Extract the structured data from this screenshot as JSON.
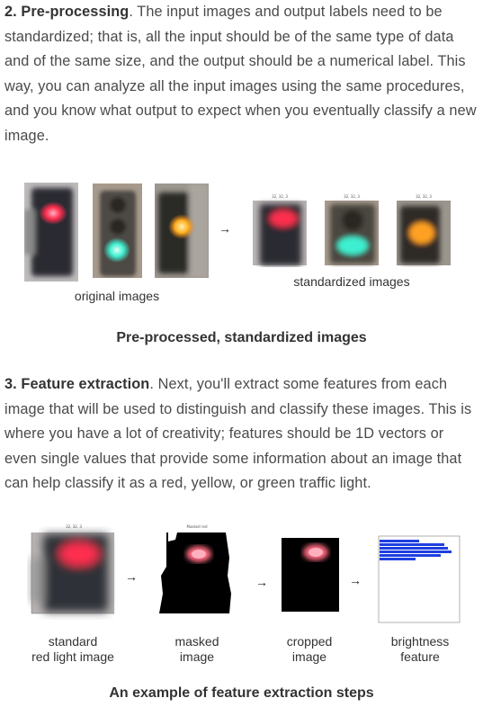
{
  "section2": {
    "title": "2. Pre-processing",
    "body": ". The input images and output labels need to be standardized; that is, all the input should be of the same type of data and of the same size, and the output should be a numerical label. This way, you can analyze all the input images using the same procedures, and you know what output to expect when you eventually classify a new image."
  },
  "figure1": {
    "label_original": "original images",
    "label_standardized": "standardized images",
    "std_titles": [
      "32, 32, 3",
      "32, 32, 3",
      "32, 32, 3"
    ],
    "caption": "Pre-processed, standardized images"
  },
  "section3": {
    "title": "3. Feature extraction",
    "body": ". Next, you'll extract some features from each image that will be used to distinguish and classify these images. This is where you have a lot of creativity; features should be 1D vectors or even single values that provide some information about an image that can help classify it as a red, yellow, or green traffic light."
  },
  "figure2": {
    "labels": [
      {
        "line1": "standard",
        "line2": "red light image"
      },
      {
        "line1": "masked",
        "line2": "image"
      },
      {
        "line1": "cropped",
        "line2": "image"
      },
      {
        "line1": "brightness",
        "line2": "feature"
      }
    ],
    "std_title": "32, 32, 3",
    "masked_title": "Masked red",
    "brightness_values": [
      0.55,
      0.9,
      0.95,
      1.0,
      0.85,
      0.5
    ],
    "caption": "An example of feature extraction steps"
  },
  "colors": {
    "bar_blue": "#1f3fe0",
    "red_light": "#ff3b5a",
    "green_light": "#3ef0d0",
    "yellow_light": "#ffb020"
  }
}
